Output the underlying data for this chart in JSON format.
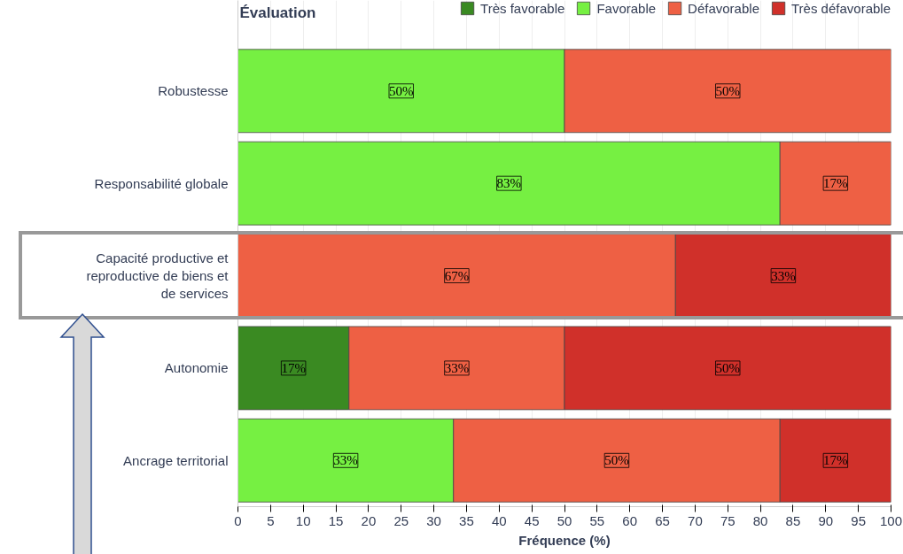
{
  "chart_data": {
    "type": "bar",
    "orientation": "horizontal",
    "stacked": true,
    "categories": [
      "Robustesse",
      "Responsabilité globale",
      "Capacité productive et reproductive de biens et de services",
      "Autonomie",
      "Ancrage territorial"
    ],
    "series": [
      {
        "name": "Très favorable",
        "color": "#3a8a22",
        "values": [
          null,
          null,
          null,
          17,
          null
        ],
        "value_labels": [
          null,
          null,
          null,
          "17%",
          null
        ]
      },
      {
        "name": "Favorable",
        "color": "#76f042",
        "values": [
          50,
          83,
          null,
          null,
          33
        ],
        "value_labels": [
          "50%",
          "83%",
          null,
          null,
          "33%"
        ]
      },
      {
        "name": "Défavorable",
        "color": "#ee6044",
        "values": [
          50,
          17,
          67,
          33,
          50
        ],
        "value_labels": [
          "50%",
          "17%",
          "67%",
          "33%",
          "50%"
        ]
      },
      {
        "name": "Très défavorable",
        "color": "#d0302a",
        "values": [
          null,
          null,
          33,
          50,
          17
        ],
        "value_labels": [
          null,
          null,
          "33%",
          "50%",
          "17%"
        ]
      }
    ],
    "xlim": [
      0,
      100
    ],
    "xticks": [
      0,
      5,
      10,
      15,
      20,
      25,
      30,
      35,
      40,
      45,
      50,
      55,
      60,
      65,
      70,
      75,
      80,
      85,
      90,
      95,
      100
    ],
    "xlabel": "Fréquence (%)",
    "legend_title": "Évaluation",
    "legend": "top",
    "grid": true
  }
}
